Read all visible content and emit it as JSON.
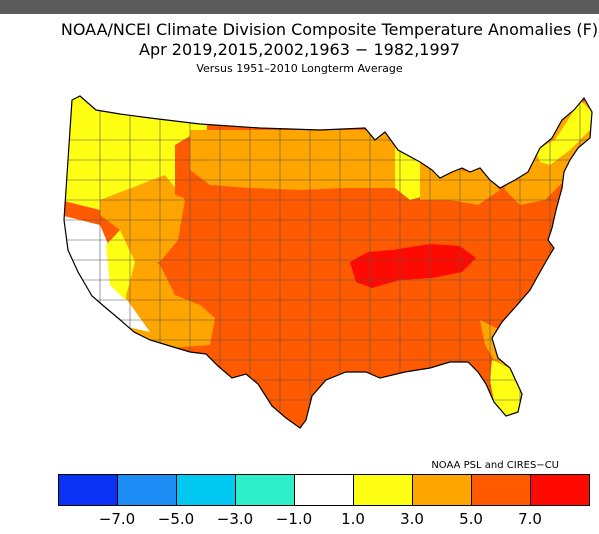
{
  "title_line1": "NOAA/NCEI Climate Division Composite Temperature Anomalies (F)",
  "title_line2": "Apr   2019,2015,2002,1963 − 1982,1997",
  "title_line3": "Versus 1951–2010 Longterm Average",
  "credit": "NOAA PSL and CIRES−CU",
  "legend": {
    "colors": [
      "#0a32f5",
      "#1e8cf5",
      "#00c8f0",
      "#2ef0c8",
      "#ffffff",
      "#ffff14",
      "#ffa500",
      "#ff5a00",
      "#ff0a00"
    ],
    "ticks": [
      "−7.0",
      "−5.0",
      "−3.0",
      "−1.0",
      "1.0",
      "3.0",
      "5.0",
      "7.0"
    ]
  },
  "map_colors": {
    "white": "#ffffff",
    "yellow": "#ffff14",
    "lightorange": "#ffa500",
    "orange": "#ff5a00",
    "red": "#ff0a00"
  }
}
